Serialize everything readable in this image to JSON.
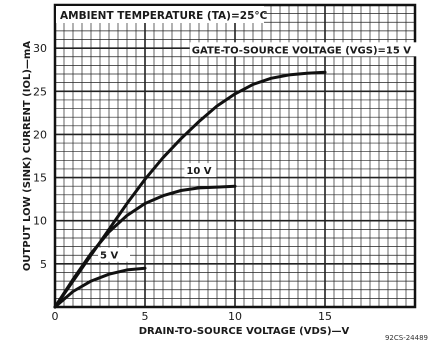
{
  "chart_data": {
    "type": "line",
    "title": "AMBIENT TEMPERATURE (TA)=25°C",
    "xlabel": "DRAIN-TO-SOURCE VOLTAGE (VDS)—V",
    "ylabel": "OUTPUT LOW (SINK) CURRENT (IOL)—mA",
    "xlim": [
      0,
      20
    ],
    "ylim": [
      0,
      35
    ],
    "x_ticks": [
      "0",
      "5",
      "10",
      "15"
    ],
    "y_ticks": [
      "5",
      "10",
      "15",
      "20",
      "25",
      "30"
    ],
    "grid": true,
    "series": [
      {
        "name": "GATE-TO-SOURCE VOLTAGE (VGS)=15 V",
        "x": [
          0,
          1,
          2,
          3,
          4,
          5,
          6,
          7,
          8,
          9,
          10,
          11,
          12,
          13,
          14,
          15
        ],
        "y": [
          0,
          3,
          6,
          9,
          12,
          14.8,
          17.3,
          19.5,
          21.5,
          23.3,
          24.7,
          25.8,
          26.5,
          26.9,
          27.1,
          27.2
        ]
      },
      {
        "name": "10 V",
        "x": [
          0,
          1,
          2,
          3,
          4,
          5,
          6,
          7,
          8,
          9,
          10
        ],
        "y": [
          0,
          3.2,
          6.2,
          8.7,
          10.6,
          12,
          12.9,
          13.5,
          13.8,
          13.9,
          14
        ]
      },
      {
        "name": "5 V",
        "x": [
          0,
          1,
          2,
          3,
          4,
          5
        ],
        "y": [
          0,
          1.8,
          3,
          3.8,
          4.3,
          4.5
        ]
      }
    ],
    "figure_id": "92CS-24489"
  }
}
